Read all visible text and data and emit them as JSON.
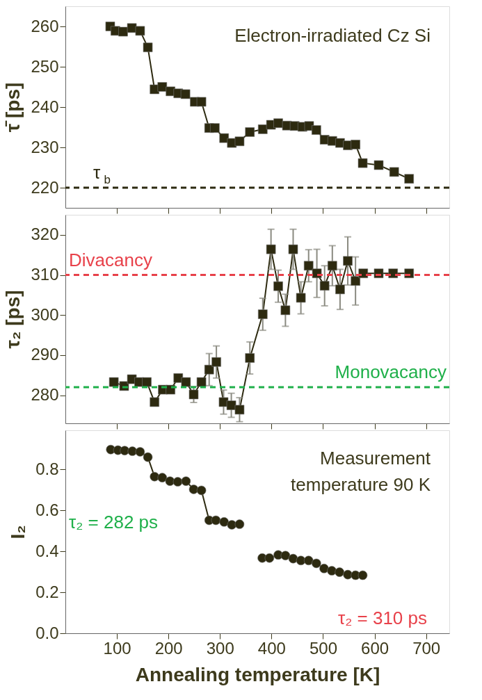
{
  "chart_data": [
    {
      "type": "line",
      "ylabel": "τ̄ [ps]",
      "xlim": [
        0,
        745
      ],
      "xticks": [
        100,
        200,
        300,
        400,
        500,
        600,
        700
      ],
      "ylim": [
        215,
        265
      ],
      "yticks": [
        220,
        230,
        240,
        250,
        260
      ],
      "tick_labels": "y",
      "marker": "square",
      "line_style": "solid",
      "grid": false,
      "annotations": [
        "Electron-irradiated Cz Si"
      ],
      "ref_lines": [
        {
          "axis": "y",
          "value": 220,
          "label": "τ$_{b}$",
          "color": "#2d2a10",
          "line_style": "dashed"
        }
      ],
      "series": [
        {
          "color": "#2d2a10",
          "x": [
            87,
            97,
            112,
            129,
            145,
            160,
            173,
            188,
            204,
            219,
            233,
            251,
            264,
            279,
            290,
            308,
            323,
            338,
            358,
            383,
            399,
            413,
            430,
            445,
            460,
            473,
            487,
            503,
            518,
            533,
            548,
            563,
            577,
            608,
            638,
            667
          ],
          "values": [
            260,
            258.9,
            258.7,
            259.6,
            258.9,
            254.8,
            244.4,
            245,
            243.9,
            243.4,
            243.2,
            241.3,
            241.3,
            234.8,
            234.8,
            232.3,
            231.1,
            231.5,
            233.8,
            234.5,
            235.6,
            236,
            235.4,
            235.3,
            235.1,
            235.3,
            234.3,
            231.9,
            231.6,
            231.1,
            230.5,
            230.7,
            226.1,
            225.6,
            223.9,
            222.2
          ]
        }
      ]
    },
    {
      "type": "line",
      "ylabel": "τ₂ [ps]",
      "xlim": [
        0,
        745
      ],
      "xticks": [
        100,
        200,
        300,
        400,
        500,
        600,
        700
      ],
      "ylim": [
        273,
        325
      ],
      "yticks": [
        280,
        290,
        300,
        310,
        320
      ],
      "tick_labels": "y",
      "marker": "square",
      "line_style": "solid",
      "grid": false,
      "ref_lines": [
        {
          "axis": "y",
          "value": 310,
          "label": "Divacancy",
          "color": "#e8414a",
          "line_style": "dashed"
        },
        {
          "axis": "y",
          "value": 282,
          "label": "Monovacancy",
          "color": "#1fb04a",
          "line_style": "dashed"
        }
      ],
      "series": [
        {
          "color": "#2d2a10",
          "x": [
            94,
            114,
            129,
            143,
            158,
            173,
            189,
            204,
            219,
            234,
            249,
            264,
            279,
            293,
            307,
            322,
            338,
            358,
            383,
            399,
            413,
            427,
            442,
            457,
            472,
            488,
            503,
            518,
            533,
            548,
            563,
            578,
            608,
            636,
            667
          ],
          "values": [
            283.3,
            282.3,
            284,
            283.3,
            283.3,
            278.3,
            281.4,
            281.4,
            284.3,
            283.3,
            280.2,
            283.3,
            286.4,
            288.3,
            278.3,
            277.5,
            276.4,
            289.3,
            300.2,
            316.4,
            307.2,
            301.2,
            316.4,
            304.3,
            312.3,
            310.4,
            307.3,
            312.3,
            306.4,
            313.5,
            308.5,
            310.4,
            310.4,
            310.4,
            310.4
          ],
          "errors": [
            null,
            null,
            null,
            null,
            null,
            null,
            null,
            null,
            null,
            null,
            2,
            null,
            4,
            4,
            3,
            3,
            3,
            4,
            4,
            5,
            4,
            4,
            5,
            4,
            4,
            6,
            5,
            5,
            5,
            6,
            6,
            null,
            null,
            null,
            null
          ]
        }
      ]
    },
    {
      "type": "line",
      "xlabel": "Annealing temperature [K]",
      "ylabel": "I₂",
      "xlim": [
        0,
        745
      ],
      "xticks": [
        100,
        200,
        300,
        400,
        500,
        600,
        700
      ],
      "ylim": [
        0,
        0.99
      ],
      "yticks": [
        {
          "value": 0,
          "label": "0.0"
        },
        0.2,
        0.4,
        0.6,
        0.8
      ],
      "marker": "circle",
      "line_style": "solid",
      "grid": false,
      "annotations": [
        "Measurement temperature 90 K",
        "τ₂ = 282 ps",
        "τ₂ = 310 ps"
      ],
      "series": [
        {
          "color": "#2d2a10",
          "x": [
            88,
            102,
            115,
            130,
            145,
            160,
            173,
            188,
            203,
            218,
            234,
            249,
            264,
            279,
            292,
            308,
            323,
            338,
            360,
            382,
            396,
            413,
            427,
            442,
            457,
            472,
            487,
            502,
            517,
            532,
            548,
            563,
            577
          ],
          "values": [
            0.896,
            0.893,
            0.891,
            0.888,
            0.885,
            0.859,
            0.764,
            0.759,
            0.742,
            0.739,
            0.742,
            0.702,
            0.697,
            0.551,
            0.551,
            0.543,
            0.529,
            0.532,
            null,
            0.367,
            0.367,
            0.382,
            0.379,
            0.364,
            0.355,
            0.355,
            0.341,
            0.316,
            0.305,
            0.298,
            0.286,
            0.283,
            0.283
          ]
        }
      ]
    }
  ]
}
